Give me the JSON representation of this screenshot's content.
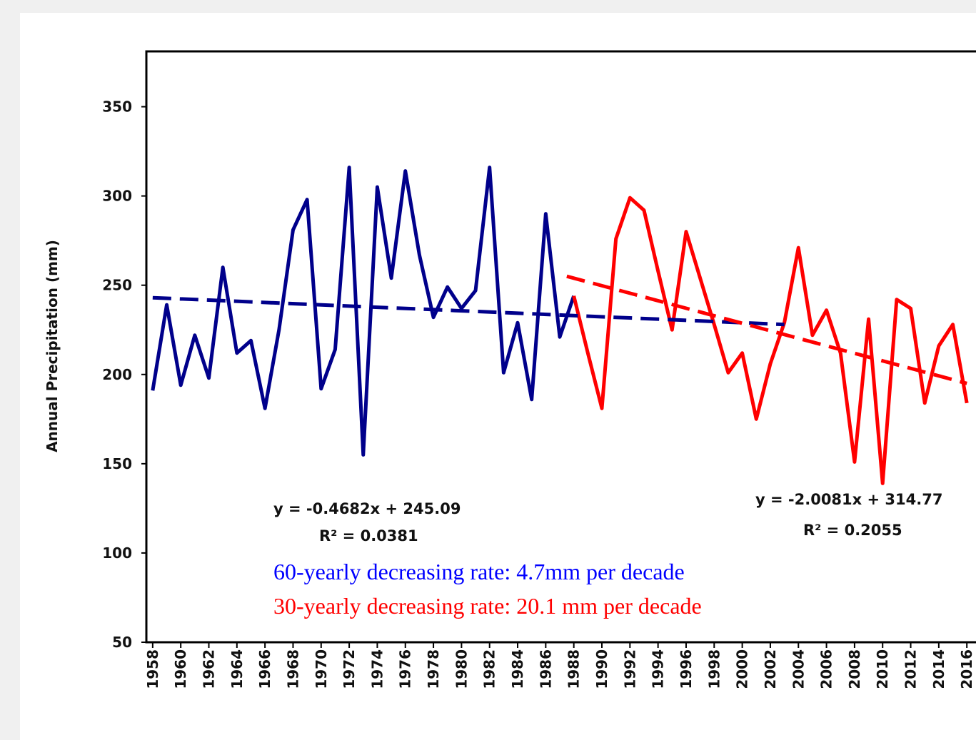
{
  "chart_data": {
    "type": "line",
    "y_label": "Annual Precipitation (mm)",
    "x": [
      1958,
      1959,
      1960,
      1961,
      1962,
      1963,
      1964,
      1965,
      1966,
      1967,
      1968,
      1969,
      1970,
      1971,
      1972,
      1973,
      1974,
      1975,
      1976,
      1977,
      1978,
      1979,
      1980,
      1981,
      1982,
      1983,
      1984,
      1985,
      1986,
      1987,
      1988,
      1989,
      1990,
      1991,
      1992,
      1993,
      1994,
      1995,
      1996,
      1997,
      1998,
      1999,
      2000,
      2001,
      2002,
      2003,
      2004,
      2005,
      2006,
      2007,
      2008,
      2009,
      2010,
      2011,
      2012,
      2013,
      2014,
      2015,
      2016
    ],
    "series": [
      {
        "color": "#00008b",
        "values": [
          191,
          239,
          194,
          222,
          198,
          260,
          212,
          219,
          181,
          225,
          281,
          298,
          192,
          214,
          316,
          155,
          305,
          254,
          314,
          267,
          232,
          249,
          237,
          247,
          316,
          201,
          229,
          186,
          290,
          221,
          244,
          null,
          null,
          null,
          null,
          null,
          null,
          null,
          null,
          null,
          null,
          null,
          null,
          null,
          null,
          null,
          null,
          null,
          null,
          null,
          null,
          null,
          null,
          null,
          null,
          null,
          null,
          null,
          null
        ]
      },
      {
        "color": "#ff0000",
        "values": [
          null,
          null,
          null,
          null,
          null,
          null,
          null,
          null,
          null,
          null,
          null,
          null,
          null,
          null,
          null,
          null,
          null,
          null,
          null,
          null,
          null,
          null,
          null,
          null,
          null,
          null,
          null,
          null,
          null,
          null,
          244,
          212,
          181,
          276,
          299,
          292,
          258,
          225,
          280,
          254,
          228,
          201,
          212,
          175,
          206,
          229,
          271,
          222,
          236,
          212,
          151,
          231,
          139,
          242,
          237,
          184,
          216,
          228,
          184
        ]
      }
    ],
    "trendlines": [
      {
        "color": "#00008b",
        "x": [
          1958,
          2003
        ],
        "values": [
          243,
          228
        ],
        "equation": "y = -0.4682x + 245.09",
        "r2": "R² = 0.0381"
      },
      {
        "color": "#ff0000",
        "x": [
          1987.5,
          2016
        ],
        "values": [
          255,
          195
        ],
        "equation": "y = -2.0081x + 314.77",
        "r2": "R² = 0.2055"
      }
    ],
    "annotations": [
      {
        "text": "60-yearly decreasing rate: 4.7mm per decade",
        "color": "#0000ff"
      },
      {
        "text": "30-yearly decreasing rate: 20.1 mm per decade",
        "color": "#ff0000"
      }
    ],
    "xlim": [
      1957.55,
      2016.55
    ],
    "xticks": [
      1958,
      1960,
      1962,
      1964,
      1966,
      1968,
      1970,
      1972,
      1974,
      1976,
      1978,
      1980,
      1982,
      1984,
      1986,
      1988,
      1990,
      1992,
      1994,
      1996,
      1998,
      2000,
      2002,
      2004,
      2006,
      2008,
      2010,
      2012,
      2014,
      2016
    ],
    "ylim": [
      50,
      381
    ],
    "yticks": [
      50,
      100,
      150,
      200,
      250,
      300,
      350
    ]
  }
}
